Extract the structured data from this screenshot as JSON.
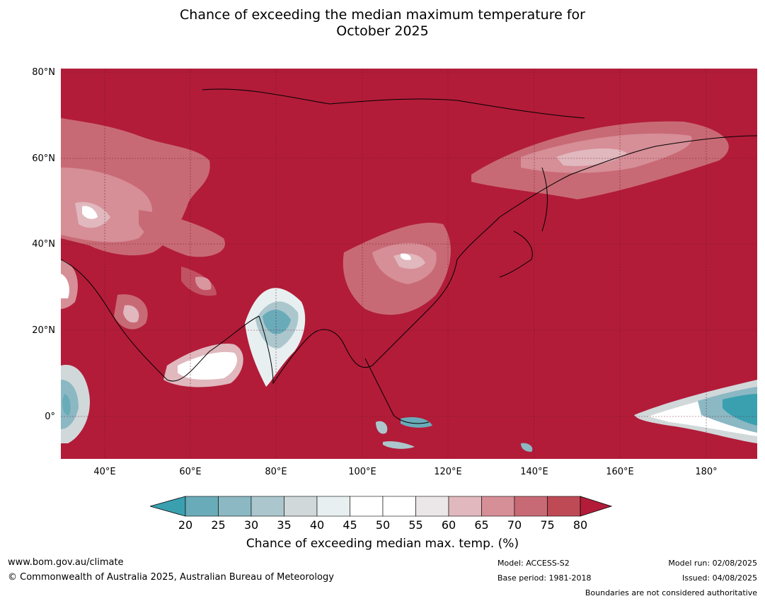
{
  "title_line1": "Chance of exceeding the median maximum temperature for",
  "title_line2": "October 2025",
  "map": {
    "lat_labels": [
      "80°N",
      "60°N",
      "40°N",
      "20°N",
      "0°"
    ],
    "lon_labels": [
      "40°E",
      "60°E",
      "80°E",
      "100°E",
      "120°E",
      "140°E",
      "160°E",
      "180°"
    ],
    "background_color": "#b21c39"
  },
  "colorbar": {
    "ticks": [
      "20",
      "25",
      "30",
      "35",
      "40",
      "45",
      "50",
      "55",
      "60",
      "65",
      "70",
      "75",
      "80"
    ],
    "colors": [
      "#3aa0b0",
      "#6aabb9",
      "#8bb8c3",
      "#abc7cd",
      "#d1d8da",
      "#e8eff0",
      "#ffffff",
      "#ffffff",
      "#ebe6e8",
      "#e0b8be",
      "#d68e97",
      "#c86a75",
      "#be4a56",
      "#b21c39"
    ],
    "label": "Chance of exceeding median max. temp. (%)"
  },
  "footer": {
    "website": "www.bom.gov.au/climate",
    "copyright": "© Commonwealth of Australia 2025, Australian Bureau of Meteorology",
    "model": "Model: ACCESS-S2",
    "base_period": "Base period: 1981-2018",
    "model_run": "Model run: 02/08/2025",
    "issued": "Issued: 04/08/2025",
    "boundaries": "Boundaries are not considered authoritative"
  }
}
